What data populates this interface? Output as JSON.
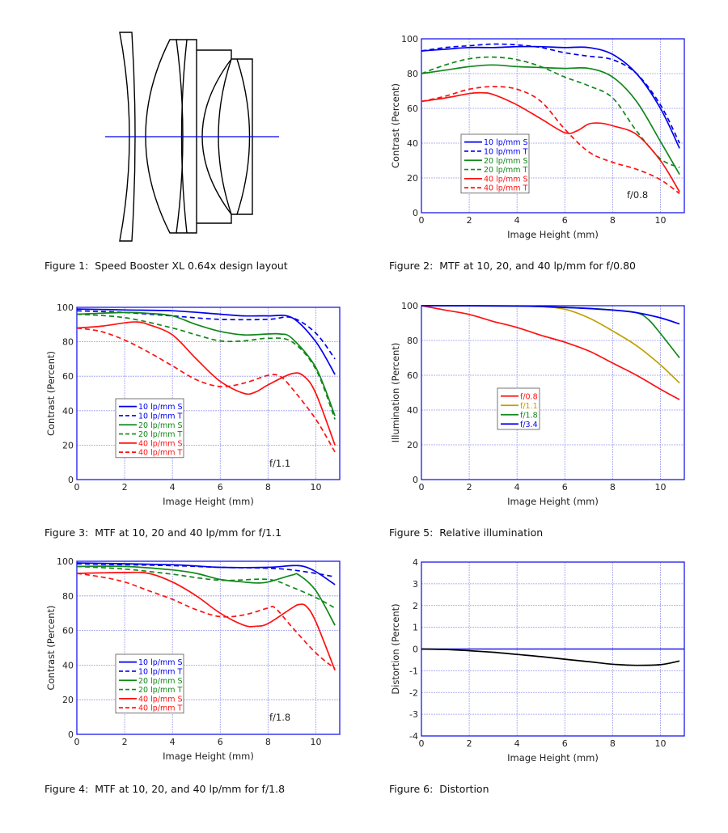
{
  "captions": {
    "fig1": "Figure 1:  Speed Booster XL 0.64x design layout",
    "fig2": "Figure 2:  MTF at 10, 20, and 40 lp/mm for f/0.80",
    "fig3": "Figure 3:  MTF at 10, 20 and 40 lp/mm for f/1.1",
    "fig5": "Figure 5:  Relative illumination",
    "fig4": "Figure 4:  MTF at 10, 20, and 40 lp/mm for f/1.8",
    "fig6": "Figure 6:  Distortion"
  },
  "chart_data": [
    {
      "id": "fig2",
      "type": "line",
      "annotation": "f/0.8",
      "xlabel": "Image Height (mm)",
      "ylabel": "Contrast (Percent)",
      "xlim": [
        0,
        11
      ],
      "ylim": [
        0,
        100
      ],
      "xticks": [
        0,
        2,
        4,
        6,
        8,
        10
      ],
      "yticks": [
        0,
        20,
        40,
        60,
        80,
        100
      ],
      "grid": true,
      "legend_position": "lower-left",
      "series": [
        {
          "name": "10 lp/mm S",
          "color": "#0000ee",
          "dash": false,
          "x": [
            0,
            1,
            2,
            3,
            4,
            5,
            6,
            7,
            8,
            9,
            10,
            10.8
          ],
          "y": [
            93,
            94,
            95,
            95,
            95.5,
            95.5,
            95,
            95,
            91,
            80,
            60,
            37
          ]
        },
        {
          "name": "10 lp/mm T",
          "color": "#0000ee",
          "dash": true,
          "x": [
            0,
            1,
            2,
            3,
            4,
            5,
            6,
            7,
            8,
            9,
            10,
            10.8
          ],
          "y": [
            93,
            95,
            96,
            97,
            96.5,
            95,
            92,
            90,
            88,
            80,
            62,
            40
          ]
        },
        {
          "name": "20 lp/mm S",
          "color": "#11881a",
          "dash": false,
          "x": [
            0,
            1,
            2,
            3,
            4,
            5,
            6,
            7,
            8,
            9,
            10,
            10.8
          ],
          "y": [
            80,
            82,
            84,
            85,
            84,
            83.5,
            83,
            83,
            78,
            64,
            41,
            22
          ]
        },
        {
          "name": "20 lp/mm T",
          "color": "#11881a",
          "dash": true,
          "x": [
            0,
            1,
            2,
            3,
            4,
            5,
            6,
            7,
            8,
            9,
            10,
            10.8
          ],
          "y": [
            80,
            85,
            88.5,
            89.5,
            88,
            84,
            78,
            73,
            66,
            47,
            31,
            26
          ]
        },
        {
          "name": "40 lp/mm S",
          "color": "#ff1111",
          "dash": false,
          "x": [
            0,
            1,
            2,
            2.5,
            3,
            4,
            5,
            6,
            6.5,
            7,
            7.5,
            8,
            9,
            10,
            10.8
          ],
          "y": [
            64,
            66,
            68.5,
            69,
            68,
            62,
            54,
            46,
            47,
            51,
            51.5,
            50,
            45,
            30,
            12
          ]
        },
        {
          "name": "40 lp/mm T",
          "color": "#ff1111",
          "dash": true,
          "x": [
            0,
            1,
            2,
            3,
            4,
            5,
            6,
            7,
            8,
            9,
            10,
            10.8
          ],
          "y": [
            64,
            67,
            71,
            72.5,
            71,
            64,
            48,
            35,
            29,
            25,
            19,
            11
          ]
        }
      ]
    },
    {
      "id": "fig3",
      "type": "line",
      "annotation": "f/1.1",
      "xlabel": "Image Height (mm)",
      "ylabel": "Contrast (Percent)",
      "xlim": [
        0,
        11
      ],
      "ylim": [
        0,
        100
      ],
      "xticks": [
        0,
        2,
        4,
        6,
        8,
        10
      ],
      "yticks": [
        0,
        20,
        40,
        60,
        80,
        100
      ],
      "grid": true,
      "legend_position": "lower-left",
      "series": [
        {
          "name": "10 lp/mm S",
          "color": "#0000ee",
          "dash": false,
          "x": [
            0,
            2,
            4,
            6,
            7,
            8,
            9,
            10,
            10.8
          ],
          "y": [
            99,
            98.5,
            98,
            96,
            95,
            95,
            94,
            80,
            61
          ]
        },
        {
          "name": "10 lp/mm T",
          "color": "#0000ee",
          "dash": true,
          "x": [
            0,
            2,
            4,
            6,
            8,
            9,
            10,
            10.8
          ],
          "y": [
            98,
            97,
            95,
            93,
            93,
            94,
            85,
            70
          ]
        },
        {
          "name": "20 lp/mm S",
          "color": "#11881a",
          "dash": false,
          "x": [
            0,
            2,
            3,
            4,
            5,
            6,
            7,
            8,
            8.5,
            9,
            10,
            10.8
          ],
          "y": [
            96,
            97,
            96.5,
            95,
            90,
            86,
            84,
            84.5,
            84.5,
            82,
            65,
            37
          ]
        },
        {
          "name": "20 lp/mm T",
          "color": "#11881a",
          "dash": true,
          "x": [
            0,
            2,
            4,
            5,
            6,
            7,
            8,
            9,
            10,
            10.8
          ],
          "y": [
            96,
            94,
            88,
            84,
            80.5,
            80.5,
            82,
            80,
            64,
            35
          ]
        },
        {
          "name": "40 lp/mm S",
          "color": "#ff1111",
          "dash": false,
          "x": [
            0,
            1,
            2,
            2.5,
            3,
            4,
            5,
            6,
            7,
            7.5,
            8,
            9,
            9.5,
            10,
            10.8
          ],
          "y": [
            88,
            89,
            91,
            91.5,
            90,
            84,
            70,
            57,
            50,
            51,
            55,
            61.5,
            60,
            50,
            20
          ]
        },
        {
          "name": "40 lp/mm T",
          "color": "#ff1111",
          "dash": true,
          "x": [
            0,
            1,
            2,
            3,
            4,
            5,
            6,
            7,
            8,
            8.5,
            9,
            10,
            10.8
          ],
          "y": [
            88,
            86,
            81,
            74,
            66,
            58,
            54,
            56,
            60.5,
            60,
            53,
            35,
            16
          ]
        }
      ]
    },
    {
      "id": "fig5",
      "type": "line",
      "annotation": "",
      "xlabel": "Image Height (mm)",
      "ylabel": "Illumination (Percent)",
      "xlim": [
        0,
        11
      ],
      "ylim": [
        0,
        100
      ],
      "xticks": [
        0,
        2,
        4,
        6,
        8,
        10
      ],
      "yticks": [
        0,
        20,
        40,
        60,
        80,
        100
      ],
      "grid": true,
      "legend_position": "center-left",
      "series": [
        {
          "name": "f/0.8",
          "color": "#ff1111",
          "dash": false,
          "x": [
            0,
            1,
            2,
            3,
            4,
            5,
            6,
            7,
            8,
            9,
            10,
            10.8
          ],
          "y": [
            100,
            97.5,
            95,
            91,
            87.5,
            83,
            79,
            74,
            67,
            60,
            52,
            46
          ]
        },
        {
          "name": "f/1.1",
          "color": "#c0a000",
          "dash": false,
          "x": [
            0,
            4,
            5,
            6,
            7,
            8,
            9,
            10,
            10.8
          ],
          "y": [
            100,
            99.8,
            99.5,
            98,
            93,
            85.5,
            77,
            66,
            55.5
          ]
        },
        {
          "name": "f/1.8",
          "color": "#11881a",
          "dash": false,
          "x": [
            0,
            4,
            6,
            7,
            8,
            9,
            9.5,
            10,
            10.8
          ],
          "y": [
            100,
            99.8,
            99,
            98.5,
            97.5,
            96,
            92,
            84,
            70
          ]
        },
        {
          "name": "f/3.4",
          "color": "#0000ee",
          "dash": false,
          "x": [
            0,
            4,
            6,
            8,
            9,
            10,
            10.8
          ],
          "y": [
            100,
            99.8,
            99,
            97.5,
            96,
            93,
            89.5
          ]
        }
      ]
    },
    {
      "id": "fig4",
      "type": "line",
      "annotation": "f/1.8",
      "xlabel": "Image Height (mm)",
      "ylabel": "Contrast (Percent)",
      "xlim": [
        0,
        11
      ],
      "ylim": [
        0,
        100
      ],
      "xticks": [
        0,
        2,
        4,
        6,
        8,
        10
      ],
      "yticks": [
        0,
        20,
        40,
        60,
        80,
        100
      ],
      "grid": true,
      "legend_position": "lower-left",
      "series": [
        {
          "name": "10 lp/mm S",
          "color": "#0000ee",
          "dash": false,
          "x": [
            0,
            4,
            6,
            8,
            9,
            9.5,
            10,
            10.8
          ],
          "y": [
            99,
            98,
            96.5,
            96.5,
            97.5,
            97,
            94,
            86.5
          ]
        },
        {
          "name": "10 lp/mm T",
          "color": "#0000ee",
          "dash": true,
          "x": [
            0,
            4,
            6,
            8,
            9,
            10,
            10.8
          ],
          "y": [
            98.5,
            97.5,
            96.5,
            96,
            95,
            93,
            91
          ]
        },
        {
          "name": "20 lp/mm S",
          "color": "#11881a",
          "dash": false,
          "x": [
            0,
            2,
            4,
            5,
            6,
            7,
            7.5,
            8,
            9,
            9.3,
            10,
            10.8
          ],
          "y": [
            97,
            97,
            95,
            93,
            89.5,
            88,
            87.5,
            88,
            92,
            92,
            83,
            63
          ]
        },
        {
          "name": "20 lp/mm T",
          "color": "#11881a",
          "dash": true,
          "x": [
            0,
            2,
            4,
            6,
            8,
            9,
            10,
            10.8
          ],
          "y": [
            97,
            95.5,
            92.5,
            89,
            89.5,
            85,
            79,
            73
          ]
        },
        {
          "name": "40 lp/mm S",
          "color": "#ff1111",
          "dash": false,
          "x": [
            0,
            2,
            3,
            4,
            5,
            6,
            7,
            7.5,
            8,
            9,
            9.3,
            9.6,
            10,
            10.8
          ],
          "y": [
            93,
            93.5,
            93,
            88,
            80,
            70,
            63,
            62.5,
            64,
            73,
            75,
            74,
            65,
            37
          ]
        },
        {
          "name": "40 lp/mm T",
          "color": "#ff1111",
          "dash": true,
          "x": [
            0,
            1,
            2,
            3,
            4,
            5,
            6,
            7,
            8,
            8.3,
            9,
            10,
            10.8
          ],
          "y": [
            93,
            91,
            88,
            83,
            78,
            72,
            68,
            69,
            73,
            73,
            62,
            47,
            38
          ]
        }
      ]
    },
    {
      "id": "fig6",
      "type": "line",
      "annotation": "",
      "xlabel": "Image Height (mm)",
      "ylabel": "Distortion (Percent)",
      "xlim": [
        0,
        11
      ],
      "ylim": [
        -4,
        4
      ],
      "xticks": [
        0,
        2,
        4,
        6,
        8,
        10
      ],
      "yticks": [
        -4,
        -3,
        -2,
        -1,
        0,
        1,
        2,
        3,
        4
      ],
      "grid": true,
      "legend_position": "none",
      "series": [
        {
          "name": "Distortion",
          "color": "#000000",
          "dash": false,
          "x": [
            0,
            1,
            2,
            3,
            4,
            5,
            6,
            7,
            8,
            9,
            10,
            10.8
          ],
          "y": [
            0,
            -0.02,
            -0.08,
            -0.15,
            -0.25,
            -0.35,
            -0.47,
            -0.58,
            -0.7,
            -0.75,
            -0.72,
            -0.55
          ]
        }
      ]
    }
  ],
  "colors": {
    "axis": "#1a1aee",
    "grid": "#9a9af0",
    "optical_axis": "#0000ee",
    "lens_outline": "#000000"
  }
}
